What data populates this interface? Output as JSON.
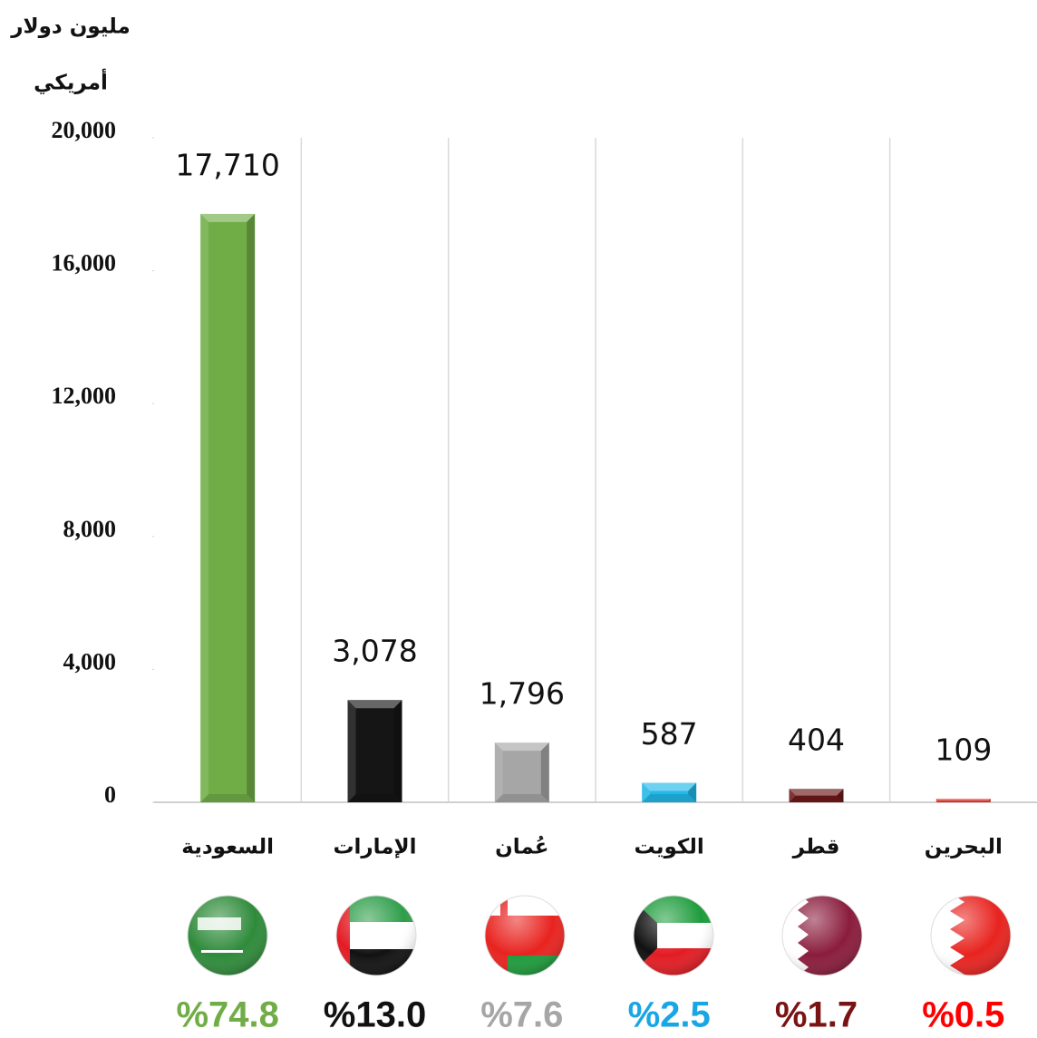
{
  "chart_data": {
    "type": "bar",
    "ylabel": [
      "مليون دولار",
      "أمريكي"
    ],
    "categories": [
      "السعودية",
      "الإمارات",
      "عُمان",
      "الكويت",
      "قطر",
      "البحرين"
    ],
    "values": [
      17710,
      3078,
      1796,
      587,
      404,
      109
    ],
    "value_labels": [
      "17,710",
      "3,078",
      "1,796",
      "587",
      "404",
      "109"
    ],
    "colors": [
      "#70ad47",
      "#151515",
      "#a6a6a6",
      "#22b8e8",
      "#6e1a1a",
      "#ec3b34"
    ],
    "share_labels": [
      "%74.8",
      "%13.0",
      "%7.6",
      "%2.5",
      "%1.7",
      "%0.5"
    ],
    "share_colors": [
      "#70ad47",
      "#111111",
      "#a6a6a6",
      "#1aa6e4",
      "#7a1414",
      "#ff0000"
    ],
    "ylim": [
      0,
      20000
    ],
    "yticks": [
      0,
      {
        "value": 4000,
        "label": "4,000"
      },
      {
        "value": 8000,
        "label": "8,000"
      },
      {
        "value": 12000,
        "label": "12,000"
      },
      {
        "value": 16000,
        "label": "16,000"
      },
      {
        "value": 20000,
        "label": "20,000"
      }
    ],
    "grid": true
  }
}
